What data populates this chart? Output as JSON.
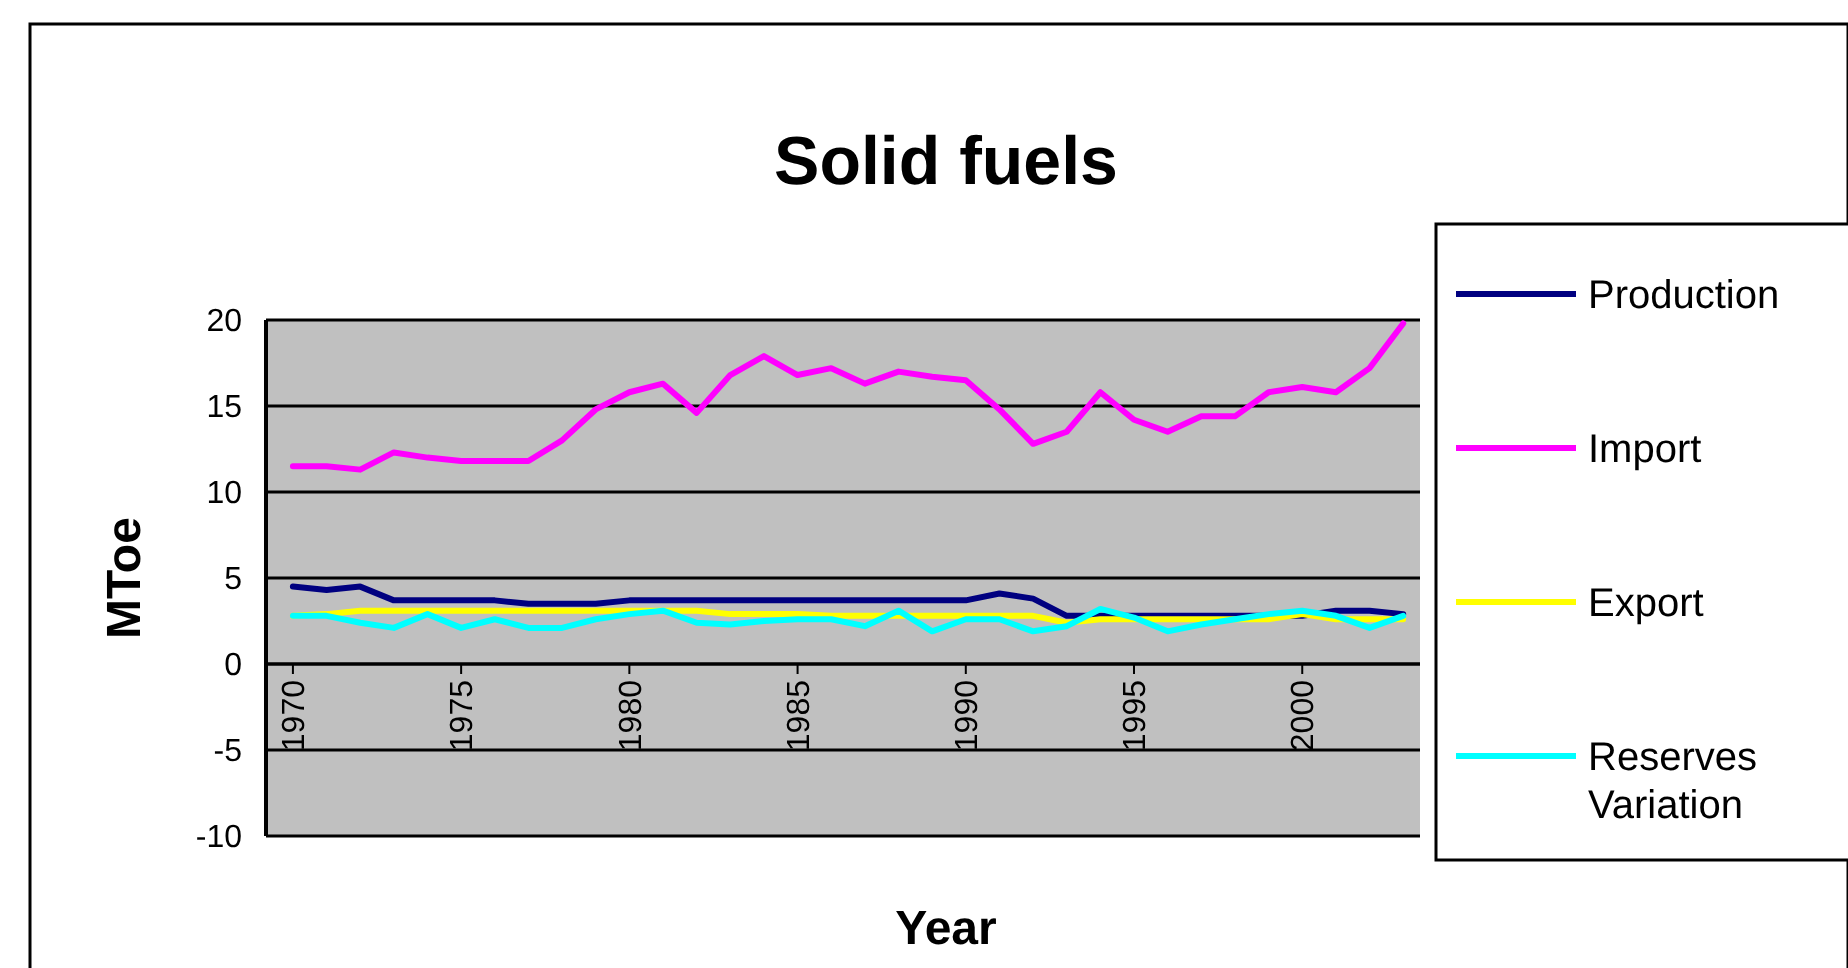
{
  "chart_data": {
    "type": "line",
    "title": "Solid fuels",
    "xlabel": "Year",
    "ylabel": "MToe",
    "x": [
      1970,
      1971,
      1972,
      1973,
      1974,
      1975,
      1976,
      1977,
      1978,
      1979,
      1980,
      1981,
      1982,
      1983,
      1984,
      1985,
      1986,
      1987,
      1988,
      1989,
      1990,
      1991,
      1992,
      1993,
      1994,
      1995,
      1996,
      1997,
      1998,
      1999,
      2000,
      2001,
      2002,
      2003
    ],
    "series": [
      {
        "name": "Production",
        "color": "#000080",
        "values": [
          4.5,
          4.3,
          4.5,
          3.7,
          3.7,
          3.7,
          3.7,
          3.5,
          3.5,
          3.5,
          3.7,
          3.7,
          3.7,
          3.7,
          3.7,
          3.7,
          3.7,
          3.7,
          3.7,
          3.7,
          3.7,
          4.1,
          3.8,
          2.8,
          2.8,
          2.8,
          2.8,
          2.8,
          2.8,
          2.8,
          2.8,
          3.1,
          3.1,
          2.9
        ]
      },
      {
        "name": "Import",
        "color": "#ff00ff",
        "values": [
          11.5,
          11.5,
          11.3,
          12.3,
          12.0,
          11.8,
          11.8,
          11.8,
          13.0,
          14.8,
          15.8,
          16.3,
          14.6,
          16.8,
          17.9,
          16.8,
          17.2,
          16.3,
          17.0,
          16.7,
          16.5,
          14.8,
          12.8,
          13.5,
          15.8,
          14.2,
          13.5,
          14.4,
          14.4,
          15.8,
          16.1,
          15.8,
          17.2,
          19.8
        ]
      },
      {
        "name": "Export",
        "color": "#ffff00",
        "values": [
          2.8,
          2.9,
          3.1,
          3.1,
          3.1,
          3.1,
          3.1,
          3.1,
          3.1,
          3.1,
          3.1,
          3.1,
          3.1,
          2.9,
          2.9,
          2.9,
          2.8,
          2.8,
          2.8,
          2.8,
          2.8,
          2.8,
          2.8,
          2.4,
          2.6,
          2.6,
          2.6,
          2.6,
          2.6,
          2.6,
          2.9,
          2.6,
          2.6,
          2.6
        ]
      },
      {
        "name": "Reserves Variation",
        "color": "#00ffff",
        "values": [
          2.8,
          2.8,
          2.4,
          2.1,
          2.9,
          2.1,
          2.6,
          2.1,
          2.1,
          2.6,
          2.9,
          3.1,
          2.4,
          2.3,
          2.5,
          2.6,
          2.6,
          2.2,
          3.1,
          1.9,
          2.6,
          2.6,
          1.9,
          2.2,
          3.2,
          2.7,
          1.9,
          2.3,
          2.6,
          2.9,
          3.1,
          2.8,
          2.1,
          2.8
        ]
      }
    ],
    "xlim": [
      1969.2,
      2003.5
    ],
    "xticks": [
      1970,
      1975,
      1980,
      1985,
      1990,
      1995,
      2000
    ],
    "ylim": [
      -10,
      20
    ],
    "yticks": [
      -10,
      -5,
      0,
      5,
      10,
      15,
      20
    ],
    "grid": "y",
    "legend": "right",
    "marker": "none",
    "line_style": "solid"
  }
}
